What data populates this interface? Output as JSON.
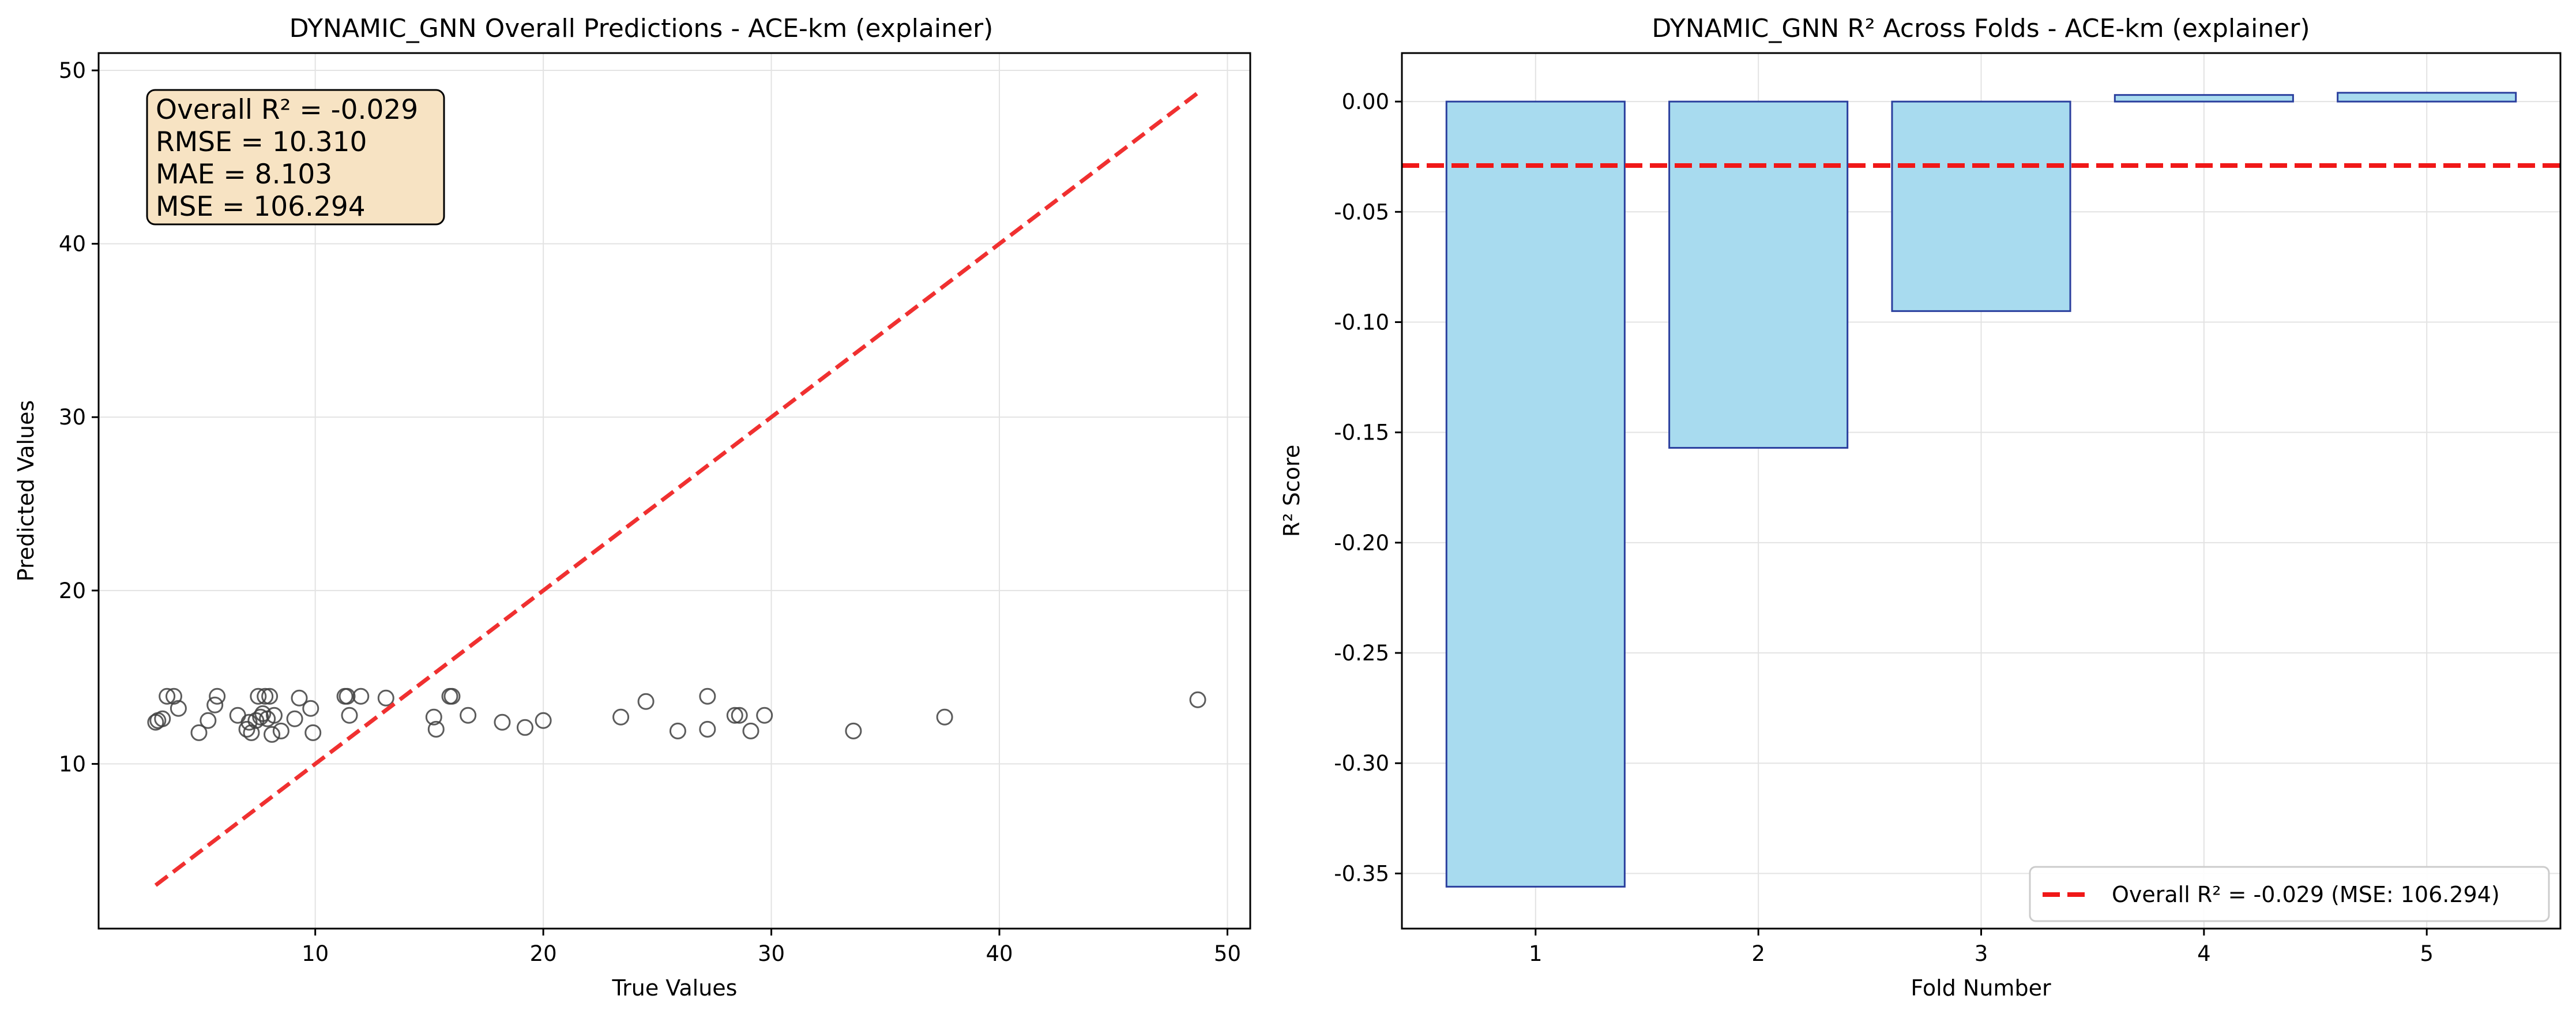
{
  "chart_data": [
    {
      "type": "scatter",
      "title": "DYNAMIC_GNN Overall Predictions - ACE-km (explainer)",
      "xlabel": "True Values",
      "ylabel": "Predicted Values",
      "xlim": [
        0.5,
        51
      ],
      "ylim": [
        0.5,
        51
      ],
      "xticks": [
        10,
        20,
        30,
        40,
        50
      ],
      "yticks": [
        10,
        20,
        30,
        40,
        50
      ],
      "grid": true,
      "point_style": "hollow-circle",
      "point_color": "#404040",
      "reference_line": {
        "label": "",
        "from": [
          3.0,
          3.0
        ],
        "to": [
          48.7,
          48.7
        ],
        "style": "dashed",
        "color": "#f03030"
      },
      "stats_box": {
        "lines": [
          "Overall R² = -0.029",
          "RMSE = 10.310",
          "MAE = 8.103",
          "MSE = 106.294"
        ],
        "background": "#f7e3c3",
        "position": "top-left"
      },
      "points": [
        [
          3.0,
          12.4
        ],
        [
          3.1,
          12.5
        ],
        [
          3.3,
          12.6
        ],
        [
          3.5,
          13.9
        ],
        [
          3.8,
          13.9
        ],
        [
          4.0,
          13.2
        ],
        [
          4.9,
          11.8
        ],
        [
          5.3,
          12.5
        ],
        [
          5.6,
          13.4
        ],
        [
          5.7,
          13.9
        ],
        [
          6.6,
          12.8
        ],
        [
          7.0,
          12.0
        ],
        [
          7.1,
          12.4
        ],
        [
          7.2,
          11.8
        ],
        [
          7.4,
          12.5
        ],
        [
          7.5,
          13.9
        ],
        [
          7.6,
          12.7
        ],
        [
          7.7,
          12.9
        ],
        [
          7.8,
          13.9
        ],
        [
          7.9,
          12.6
        ],
        [
          8.0,
          13.9
        ],
        [
          8.1,
          11.7
        ],
        [
          8.2,
          12.8
        ],
        [
          8.5,
          11.9
        ],
        [
          9.1,
          12.6
        ],
        [
          9.3,
          13.8
        ],
        [
          9.8,
          13.2
        ],
        [
          9.9,
          11.8
        ],
        [
          11.3,
          13.9
        ],
        [
          11.4,
          13.9
        ],
        [
          11.5,
          12.8
        ],
        [
          12.0,
          13.9
        ],
        [
          13.1,
          13.8
        ],
        [
          15.2,
          12.7
        ],
        [
          15.3,
          12.0
        ],
        [
          15.9,
          13.9
        ],
        [
          16.0,
          13.9
        ],
        [
          16.7,
          12.8
        ],
        [
          18.2,
          12.4
        ],
        [
          19.2,
          12.1
        ],
        [
          20.0,
          12.5
        ],
        [
          23.4,
          12.7
        ],
        [
          24.5,
          13.6
        ],
        [
          25.9,
          11.9
        ],
        [
          27.2,
          13.9
        ],
        [
          27.2,
          12.0
        ],
        [
          28.4,
          12.8
        ],
        [
          28.6,
          12.8
        ],
        [
          29.1,
          11.9
        ],
        [
          29.7,
          12.8
        ],
        [
          33.6,
          11.9
        ],
        [
          37.6,
          12.7
        ],
        [
          48.7,
          13.7
        ]
      ]
    },
    {
      "type": "bar",
      "title": "DYNAMIC_GNN R² Across Folds - ACE-km (explainer)",
      "xlabel": "Fold Number",
      "ylabel": "R² Score",
      "categories": [
        "1",
        "2",
        "3",
        "4",
        "5"
      ],
      "values": [
        -0.356,
        -0.157,
        -0.095,
        0.003,
        0.004
      ],
      "ylim": [
        -0.375,
        0.022
      ],
      "yticks": [
        "0.00",
        "-0.05",
        "-0.10",
        "-0.15",
        "-0.20",
        "-0.25",
        "-0.30",
        "-0.35"
      ],
      "grid": true,
      "bar_fill": "#a8dbef",
      "bar_edge": "#2a3f9e",
      "reference_line": {
        "value": -0.029,
        "style": "dashed",
        "color": "#f01818"
      },
      "legend": {
        "position": "bottom-right",
        "entries": [
          "Overall R² = -0.029 (MSE: 106.294)"
        ]
      }
    }
  ]
}
